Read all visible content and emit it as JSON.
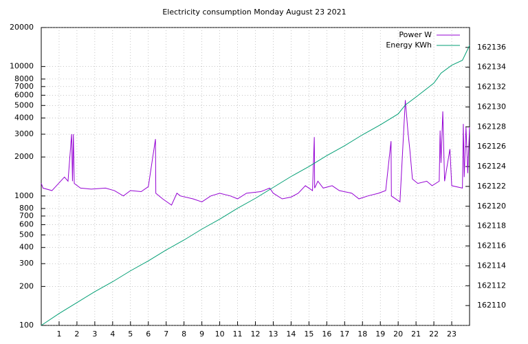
{
  "chart_data": {
    "type": "line",
    "title": "Electricity consumption Monday August 23 2021",
    "log_y": true,
    "grid": true,
    "legend": "top-right",
    "xlim": [
      0,
      24
    ],
    "xticks": [
      1,
      2,
      3,
      4,
      5,
      6,
      7,
      8,
      9,
      10,
      11,
      12,
      13,
      14,
      15,
      16,
      17,
      18,
      19,
      20,
      21,
      22,
      23
    ],
    "ylim": [
      100,
      20000
    ],
    "yticks": [
      100,
      200,
      300,
      400,
      500,
      600,
      700,
      800,
      1000,
      2000,
      3000,
      4000,
      5000,
      6000,
      7000,
      8000,
      10000,
      20000
    ],
    "y2lim": [
      162108,
      162138
    ],
    "y2ticks": [
      162110,
      162112,
      162114,
      162116,
      162118,
      162120,
      162122,
      162124,
      162126,
      162128,
      162130,
      162132,
      162134,
      162136
    ],
    "series": [
      {
        "name": "Power W",
        "color": "#9400d3",
        "x": [
          0,
          0.1,
          0.6,
          1.3,
          1.5,
          1.7,
          1.75,
          1.8,
          1.85,
          2.2,
          2.8,
          3.6,
          4.1,
          4.6,
          5.0,
          5.6,
          6.0,
          6.4,
          6.42,
          6.8,
          7.3,
          7.6,
          7.8,
          8.5,
          9.0,
          9.5,
          10.0,
          10.6,
          11.0,
          11.5,
          12.3,
          12.8,
          13.0,
          13.5,
          14.0,
          14.4,
          14.8,
          15.2,
          15.3,
          15.32,
          15.5,
          15.8,
          16.3,
          16.7,
          17.4,
          17.8,
          18.3,
          18.9,
          19.3,
          19.6,
          19.62,
          20.1,
          20.4,
          20.55,
          20.65,
          20.8,
          21.1,
          21.6,
          21.9,
          22.3,
          22.35,
          22.4,
          22.5,
          22.6,
          22.9,
          23.0,
          23.6,
          23.65,
          23.7,
          23.8,
          23.9,
          24
        ],
        "values": [
          1250,
          1150,
          1100,
          1400,
          1300,
          3000,
          1300,
          3000,
          1250,
          1150,
          1130,
          1150,
          1100,
          1000,
          1100,
          1080,
          1180,
          2750,
          1050,
          950,
          850,
          1050,
          1000,
          950,
          900,
          1000,
          1050,
          1000,
          950,
          1050,
          1080,
          1150,
          1050,
          950,
          980,
          1050,
          1200,
          1100,
          2850,
          1150,
          1300,
          1150,
          1200,
          1100,
          1050,
          950,
          1000,
          1050,
          1100,
          2650,
          1000,
          900,
          5500,
          3100,
          2300,
          1350,
          1250,
          1300,
          1200,
          1300,
          3200,
          1800,
          4500,
          1300,
          2300,
          1200,
          1150,
          3600,
          1400,
          3400,
          1500,
          3400
        ]
      },
      {
        "name": "Energy KWh",
        "color": "#009e73",
        "axis": "y2",
        "x": [
          0,
          1,
          2,
          3,
          4,
          5,
          6,
          7,
          8,
          9,
          10,
          11,
          12,
          13,
          14,
          15,
          16,
          17,
          18,
          19,
          20,
          20.4,
          21,
          22,
          22.4,
          23,
          23.6,
          24
        ],
        "values": [
          162108,
          162109.2,
          162110.3,
          162111.4,
          162112.4,
          162113.5,
          162114.5,
          162115.6,
          162116.6,
          162117.7,
          162118.7,
          162119.8,
          162120.8,
          162121.9,
          162123.0,
          162124.0,
          162125.1,
          162126.1,
          162127.2,
          162128.2,
          162129.3,
          162130.2,
          162131.0,
          162132.4,
          162133.4,
          162134.2,
          162134.7,
          162136.2
        ]
      }
    ]
  }
}
